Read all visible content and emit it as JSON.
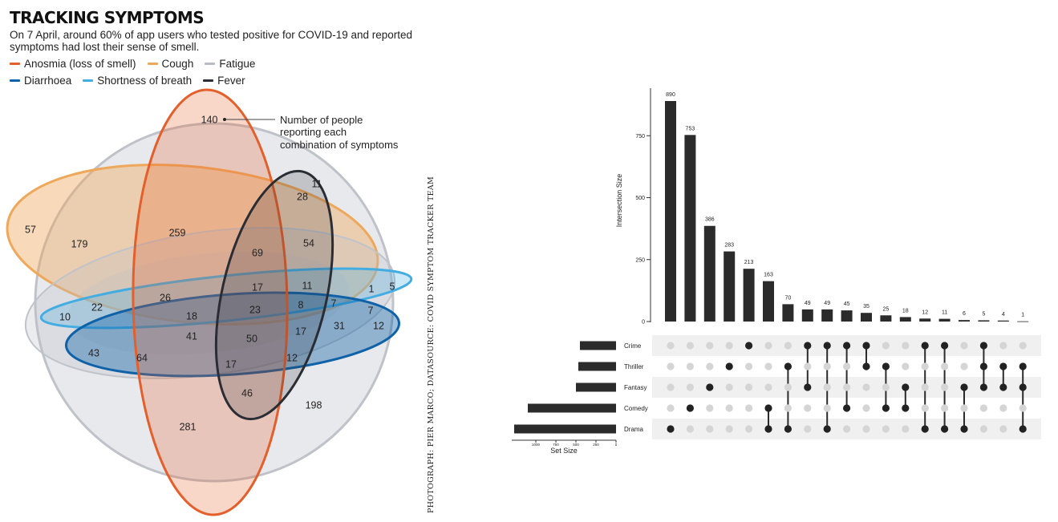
{
  "header": {
    "title": "TRACKING SYMPTOMS",
    "subtitle": "On 7 April, around 60% of app users who tested positive for COVID-19 and reported symptoms had lost their sense of smell."
  },
  "legend": {
    "row1": [
      {
        "name": "Anosmia (loss of smell)",
        "color": "#e45f2b"
      },
      {
        "name": "Cough",
        "color": "#eea85b"
      },
      {
        "name": "Fatigue",
        "color": "#b9bcc4"
      }
    ],
    "row2": [
      {
        "name": "Diarrhoea",
        "color": "#0f62a8"
      },
      {
        "name": "Shortness of breath",
        "color": "#43ade2"
      },
      {
        "name": "Fever",
        "color": "#2b2d35"
      }
    ]
  },
  "venn": {
    "annotation": [
      "Number of people",
      "reporting each",
      "combination of symptoms"
    ],
    "values": [
      "140",
      "11",
      "28",
      "57",
      "179",
      "259",
      "54",
      "69",
      "17",
      "11",
      "1",
      "5",
      "26",
      "22",
      "10",
      "18",
      "23",
      "8",
      "7",
      "7",
      "12",
      "41",
      "50",
      "17",
      "31",
      "43",
      "64",
      "12",
      "17",
      "46",
      "198",
      "281"
    ]
  },
  "credit": "PHOTOGRAPH: PIER MARCO; DATASOURCE: COVID SYMPTOM TRACKER TEAM",
  "chart_data": {
    "type": "bar",
    "ylabel": "Intersection Size",
    "yticks": [
      "0",
      "250",
      "500",
      "750"
    ],
    "ylim": [
      0,
      900
    ],
    "values": [
      890,
      753,
      386,
      283,
      213,
      163,
      70,
      49,
      49,
      45,
      35,
      25,
      18,
      12,
      11,
      6,
      5,
      4,
      1
    ],
    "labels": [
      "890",
      "753",
      "386",
      "283",
      "213",
      "163",
      "70",
      "49",
      "49",
      "45",
      "35",
      "25",
      "18",
      "12",
      "11",
      "6",
      "5",
      "4",
      "1"
    ],
    "sets": [
      "Crime",
      "Thriller",
      "Fantasy",
      "Comedy",
      "Drama"
    ],
    "set_size_label": "Set Size",
    "set_size_ticks": [
      "1000",
      "750",
      "500",
      "250",
      "0"
    ],
    "set_sizes": [
      450,
      470,
      500,
      1100,
      1270
    ],
    "set_size_max": 1300,
    "membership": [
      [
        "Drama"
      ],
      [
        "Comedy"
      ],
      [
        "Fantasy"
      ],
      [
        "Thriller"
      ],
      [
        "Crime"
      ],
      [
        "Comedy",
        "Drama"
      ],
      [
        "Thriller",
        "Drama"
      ],
      [
        "Crime",
        "Fantasy"
      ],
      [
        "Crime",
        "Drama"
      ],
      [
        "Crime",
        "Comedy"
      ],
      [
        "Crime",
        "Thriller"
      ],
      [
        "Thriller",
        "Comedy"
      ],
      [
        "Fantasy",
        "Comedy"
      ],
      [
        "Crime",
        "Drama"
      ],
      [
        "Crime",
        "Drama"
      ],
      [
        "Fantasy",
        "Drama"
      ],
      [
        "Crime",
        "Thriller",
        "Fantasy"
      ],
      [
        "Thriller",
        "Fantasy"
      ],
      [
        "Thriller",
        "Fantasy",
        "Drama"
      ]
    ]
  }
}
